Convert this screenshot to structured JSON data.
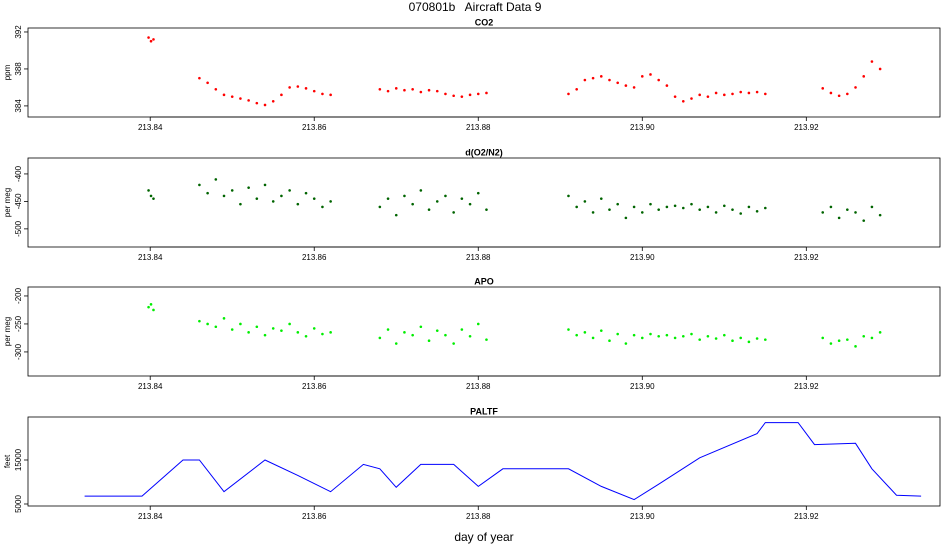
{
  "title": "070801b   Aircraft Data 9",
  "chart_data": [
    {
      "type": "scatter",
      "title": "CO2",
      "ylabel": "ppm",
      "color": "#ff0000",
      "xlim": [
        213.8251,
        213.9363
      ],
      "ylim": [
        382.8,
        392.43
      ],
      "xticks": [
        213.84,
        213.86,
        213.88,
        {
          "value": 213.9,
          "label": "213.90"
        },
        213.92
      ],
      "yticks": [
        384,
        388,
        392
      ],
      "x": [
        213.8398,
        213.8401,
        213.8404,
        213.846,
        213.847,
        213.848,
        213.849,
        213.85,
        213.851,
        213.852,
        213.853,
        213.854,
        213.855,
        213.856,
        213.857,
        213.858,
        213.859,
        213.86,
        213.861,
        213.862,
        213.868,
        213.869,
        213.87,
        213.871,
        213.872,
        213.873,
        213.874,
        213.875,
        213.876,
        213.877,
        213.878,
        213.879,
        213.88,
        213.881,
        213.891,
        213.892,
        213.893,
        213.894,
        213.895,
        213.896,
        213.897,
        213.898,
        213.899,
        213.9,
        213.901,
        213.902,
        213.903,
        213.904,
        213.905,
        213.906,
        213.907,
        213.908,
        213.909,
        213.91,
        213.911,
        213.912,
        213.913,
        213.914,
        213.915,
        213.922,
        213.923,
        213.924,
        213.925,
        213.926,
        213.927,
        213.928,
        213.929
      ],
      "values": [
        391.4,
        391.0,
        391.2,
        387.0,
        386.5,
        385.8,
        385.2,
        385.0,
        384.8,
        384.6,
        384.3,
        384.1,
        384.5,
        385.2,
        386.0,
        386.1,
        385.9,
        385.6,
        385.3,
        385.2,
        385.8,
        385.6,
        385.9,
        385.7,
        385.8,
        385.5,
        385.7,
        385.6,
        385.3,
        385.1,
        385.0,
        385.2,
        385.3,
        385.4,
        385.3,
        385.8,
        386.8,
        387.0,
        387.2,
        386.8,
        386.5,
        386.2,
        386.0,
        387.2,
        387.4,
        386.8,
        386.2,
        385.0,
        384.5,
        384.8,
        385.2,
        385.0,
        385.4,
        385.2,
        385.3,
        385.5,
        385.4,
        385.5,
        385.3,
        385.9,
        385.4,
        385.1,
        385.3,
        386.0,
        387.2,
        388.8,
        388.0
      ]
    },
    {
      "type": "scatter",
      "title": "d(O2/N2)",
      "ylabel": "per meg",
      "color": "#006400",
      "xlim": [
        213.8251,
        213.9363
      ],
      "ylim": [
        -533,
        -371
      ],
      "xticks": [
        213.84,
        213.86,
        213.88,
        {
          "value": 213.9,
          "label": "213.90"
        },
        213.92
      ],
      "yticks": [
        -400,
        -450,
        -500
      ],
      "x": [
        213.8398,
        213.8401,
        213.8404,
        213.846,
        213.847,
        213.848,
        213.849,
        213.85,
        213.851,
        213.852,
        213.853,
        213.854,
        213.855,
        213.856,
        213.857,
        213.858,
        213.859,
        213.86,
        213.861,
        213.862,
        213.868,
        213.869,
        213.87,
        213.871,
        213.872,
        213.873,
        213.874,
        213.875,
        213.876,
        213.877,
        213.878,
        213.879,
        213.88,
        213.881,
        213.891,
        213.892,
        213.893,
        213.894,
        213.895,
        213.896,
        213.897,
        213.898,
        213.899,
        213.9,
        213.901,
        213.902,
        213.903,
        213.904,
        213.905,
        213.906,
        213.907,
        213.908,
        213.909,
        213.91,
        213.911,
        213.912,
        213.913,
        213.914,
        213.915,
        213.922,
        213.923,
        213.924,
        213.925,
        213.926,
        213.927,
        213.928,
        213.929
      ],
      "values": [
        -430,
        -440,
        -445,
        -420,
        -435,
        -410,
        -440,
        -430,
        -455,
        -425,
        -445,
        -420,
        -450,
        -440,
        -430,
        -455,
        -435,
        -445,
        -460,
        -450,
        -460,
        -445,
        -475,
        -440,
        -455,
        -430,
        -465,
        -450,
        -440,
        -470,
        -445,
        -455,
        -435,
        -465,
        -440,
        -460,
        -450,
        -470,
        -445,
        -465,
        -455,
        -480,
        -460,
        -470,
        -455,
        -465,
        -460,
        -458,
        -462,
        -455,
        -465,
        -460,
        -470,
        -458,
        -465,
        -472,
        -460,
        -468,
        -462,
        -470,
        -460,
        -480,
        -465,
        -470,
        -485,
        -460,
        -475
      ]
    },
    {
      "type": "scatter",
      "title": "APO",
      "ylabel": "per meg",
      "color": "#00ee00",
      "xlim": [
        213.8251,
        213.9363
      ],
      "ylim": [
        -343,
        -184
      ],
      "xticks": [
        213.84,
        213.86,
        213.88,
        {
          "value": 213.9,
          "label": "213.90"
        },
        213.92
      ],
      "yticks": [
        -200,
        -250,
        -300
      ],
      "x": [
        213.8398,
        213.8401,
        213.8404,
        213.846,
        213.847,
        213.848,
        213.849,
        213.85,
        213.851,
        213.852,
        213.853,
        213.854,
        213.855,
        213.856,
        213.857,
        213.858,
        213.859,
        213.86,
        213.861,
        213.862,
        213.868,
        213.869,
        213.87,
        213.871,
        213.872,
        213.873,
        213.874,
        213.875,
        213.876,
        213.877,
        213.878,
        213.879,
        213.88,
        213.881,
        213.891,
        213.892,
        213.893,
        213.894,
        213.895,
        213.896,
        213.897,
        213.898,
        213.899,
        213.9,
        213.901,
        213.902,
        213.903,
        213.904,
        213.905,
        213.906,
        213.907,
        213.908,
        213.909,
        213.91,
        213.911,
        213.912,
        213.913,
        213.914,
        213.915,
        213.922,
        213.923,
        213.924,
        213.925,
        213.926,
        213.927,
        213.928,
        213.929
      ],
      "values": [
        -220,
        -215,
        -225,
        -245,
        -250,
        -255,
        -240,
        -260,
        -250,
        -265,
        -255,
        -270,
        -258,
        -262,
        -250,
        -265,
        -272,
        -258,
        -268,
        -265,
        -275,
        -260,
        -285,
        -265,
        -270,
        -255,
        -280,
        -262,
        -270,
        -285,
        -260,
        -272,
        -250,
        -278,
        -260,
        -270,
        -265,
        -275,
        -262,
        -280,
        -268,
        -285,
        -270,
        -275,
        -268,
        -272,
        -270,
        -275,
        -272,
        -268,
        -278,
        -272,
        -276,
        -270,
        -280,
        -275,
        -282,
        -276,
        -278,
        -275,
        -285,
        -280,
        -278,
        -290,
        -272,
        -275,
        -265
      ]
    },
    {
      "type": "line",
      "title": "PALTF",
      "ylabel": "feet",
      "xlabel": "day of year",
      "color": "#0000ff",
      "xlim": [
        213.8251,
        213.9363
      ],
      "ylim": [
        4545,
        24770
      ],
      "xticks": [
        213.84,
        213.86,
        213.88,
        {
          "value": 213.9,
          "label": "213.90"
        },
        213.92
      ],
      "yticks": [
        5000,
        15000
      ],
      "x": [
        213.832,
        213.839,
        213.844,
        213.846,
        213.849,
        213.854,
        213.858,
        213.862,
        213.866,
        213.868,
        213.87,
        213.873,
        213.877,
        213.88,
        213.883,
        213.891,
        213.895,
        213.899,
        213.902,
        213.907,
        213.914,
        213.915,
        213.919,
        213.921,
        213.926,
        213.928,
        213.931,
        213.934
      ],
      "values": [
        6800,
        6800,
        15000,
        15000,
        7800,
        15000,
        11500,
        7800,
        14000,
        13000,
        8800,
        14000,
        14000,
        9000,
        13000,
        13000,
        9000,
        6000,
        9500,
        15500,
        21000,
        23500,
        23500,
        18500,
        18800,
        13000,
        7000,
        6800
      ]
    }
  ]
}
